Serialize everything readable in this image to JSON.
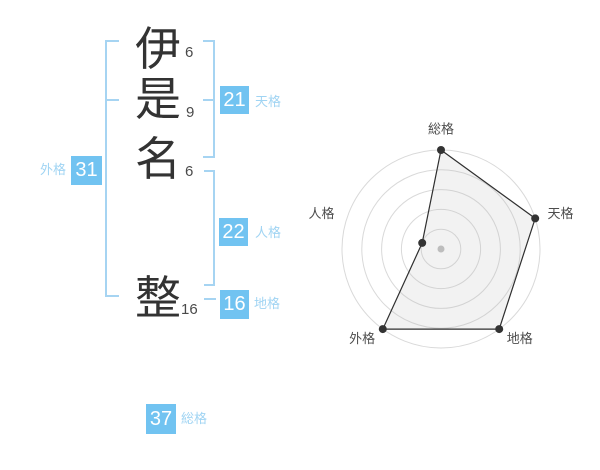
{
  "name": {
    "characters": [
      {
        "char": "伊",
        "strokes": "6"
      },
      {
        "char": "是",
        "strokes": "9"
      },
      {
        "char": "名",
        "strokes": "6"
      },
      {
        "char": "整",
        "strokes": "16"
      }
    ],
    "kaku": [
      {
        "id": "tenkaku",
        "label": "天格",
        "value": "21"
      },
      {
        "id": "jinkaku",
        "label": "人格",
        "value": "22"
      },
      {
        "id": "chikaku",
        "label": "地格",
        "value": "16"
      },
      {
        "id": "gaikaku",
        "label": "外格",
        "value": "31"
      },
      {
        "id": "soukaku",
        "label": "総格",
        "value": "37"
      }
    ]
  },
  "colors": {
    "badge_blue": "#71c3f1",
    "label_blue": "#a0d4f3",
    "bracket_blue": "#a6d4f2",
    "text_dark": "#333333"
  },
  "chart_data": {
    "type": "radar",
    "title": "",
    "axes": [
      "総格",
      "天格",
      "地格",
      "外格",
      "人格"
    ],
    "values": [
      5,
      5,
      5,
      5,
      1
    ],
    "max": 5,
    "rings": 5,
    "grid": "circular",
    "legend": "none",
    "ring_color": "#d9d9d9",
    "line_color": "#2f2f2f",
    "point_color": "#333333",
    "fill_color": "rgba(185,185,185,0.18)",
    "center_dot_color": "#bdbdbd",
    "label_color": "#4d4d4d"
  }
}
